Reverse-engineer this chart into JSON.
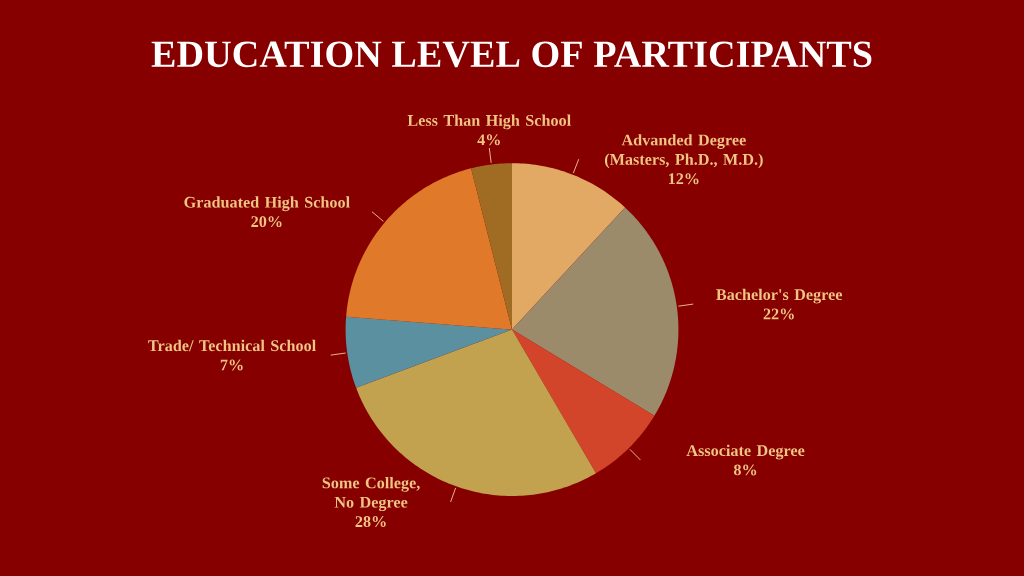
{
  "chart_data": {
    "type": "pie",
    "title": "EDUCATION LEVEL OF PARTICIPANTS",
    "categories": [
      "Advanded Degree (Masters, Ph.D., M.D.)",
      "Bachelor's Degree",
      "Associate Degree",
      "Some College, No Degree",
      "Trade/ Technical School",
      "Graduated High School",
      "Less Than High School"
    ],
    "values": [
      12,
      22,
      8,
      28,
      7,
      20,
      4
    ],
    "value_labels": [
      "12%",
      "22%",
      "8%",
      "28%",
      "7%",
      "20%",
      "4%"
    ],
    "colors": [
      "#e2a965",
      "#9b8b6b",
      "#d2452b",
      "#c2a24e",
      "#5b90a0",
      "#e07a2a",
      "#a06b22"
    ]
  }
}
